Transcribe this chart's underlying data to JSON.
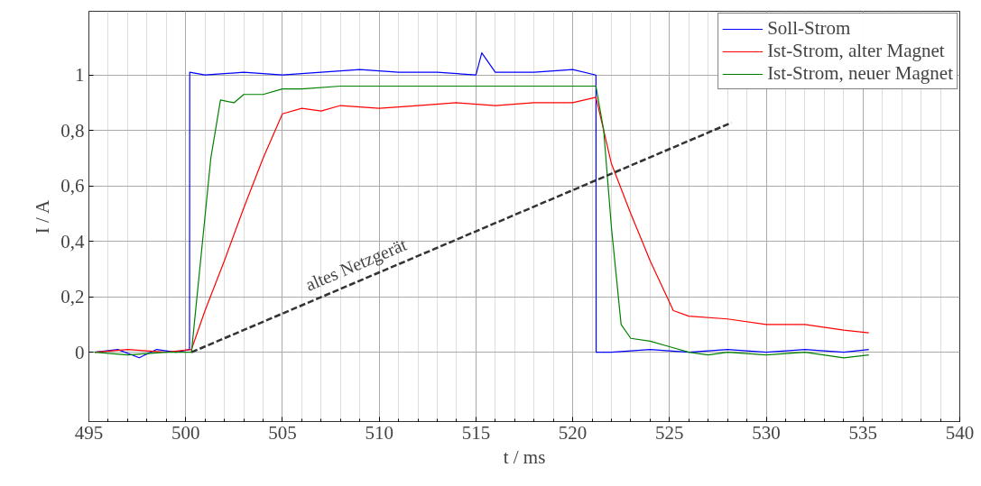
{
  "chart_data": {
    "type": "line",
    "xlabel": "t / ms",
    "ylabel": "I / A",
    "xlim": [
      495,
      540
    ],
    "ylim": [
      -0.25,
      1.23
    ],
    "xticks": [
      495,
      500,
      505,
      510,
      515,
      520,
      525,
      530,
      535,
      540
    ],
    "yticks": [
      0,
      {
        "value": 0.2,
        "label": "0,2"
      },
      {
        "value": 0.4,
        "label": "0,4"
      },
      {
        "value": 0.6,
        "label": "0,6"
      },
      {
        "value": 0.8,
        "label": "0,8"
      },
      1
    ],
    "grid": true,
    "legend": "top right",
    "line_style": "solid",
    "marker": "none",
    "series": [
      {
        "name": "Soll-Strom",
        "color": "#0000ff",
        "x": [
          495.3,
          496.5,
          497.6,
          498.5,
          499.5,
          500.2,
          500.21,
          501,
          503,
          505,
          507,
          509,
          511,
          513,
          515,
          515.3,
          516,
          518,
          520,
          521.2,
          521.21,
          522,
          524,
          526,
          528,
          530,
          532,
          534,
          535.3
        ],
        "values": [
          0,
          0.01,
          -0.02,
          0.01,
          0,
          0.01,
          1.01,
          1.0,
          1.01,
          1.0,
          1.01,
          1.02,
          1.01,
          1.01,
          1.0,
          1.08,
          1.01,
          1.01,
          1.02,
          1.0,
          0.0,
          0.0,
          0.01,
          0.0,
          0.01,
          0,
          0.01,
          0,
          0.01
        ]
      },
      {
        "name": "Ist-Strom, alter Magnet",
        "color": "#ff0000",
        "x": [
          495.3,
          497,
          499,
          500.3,
          501,
          502,
          503,
          504,
          505,
          506,
          507,
          508,
          510,
          512,
          514,
          516,
          518,
          520,
          521.2,
          521.5,
          522,
          523,
          524,
          525.2,
          526,
          528,
          530,
          532,
          534,
          535.3
        ],
        "values": [
          0,
          0.01,
          0,
          0.01,
          0.15,
          0.33,
          0.52,
          0.7,
          0.86,
          0.88,
          0.87,
          0.89,
          0.88,
          0.89,
          0.9,
          0.89,
          0.9,
          0.9,
          0.92,
          0.83,
          0.68,
          0.5,
          0.33,
          0.15,
          0.13,
          0.12,
          0.1,
          0.1,
          0.08,
          0.07
        ]
      },
      {
        "name": "Ist-Strom, neuer Magnet",
        "color": "#008000",
        "x": [
          495.3,
          497,
          499,
          500.3,
          500.8,
          501.3,
          501.8,
          502.5,
          503,
          504,
          505,
          506,
          508,
          510,
          512,
          514,
          516,
          518,
          520,
          521.2,
          521.6,
          522,
          522.5,
          523,
          524,
          525,
          526,
          527,
          528,
          530,
          532,
          534,
          535.3
        ],
        "values": [
          0,
          -0.01,
          0,
          0,
          0.35,
          0.7,
          0.91,
          0.9,
          0.93,
          0.93,
          0.95,
          0.95,
          0.96,
          0.96,
          0.96,
          0.96,
          0.96,
          0.96,
          0.96,
          0.96,
          0.8,
          0.45,
          0.1,
          0.05,
          0.04,
          0.02,
          0,
          -0.01,
          0,
          -0.01,
          0,
          -0.02,
          -0.01
        ]
      },
      {
        "color": "#333333",
        "line_style": "dashed",
        "x": [
          500.3,
          528.2
        ],
        "values": [
          0,
          0.828
        ]
      }
    ],
    "annotations": [
      "altes Netzgerät"
    ]
  }
}
